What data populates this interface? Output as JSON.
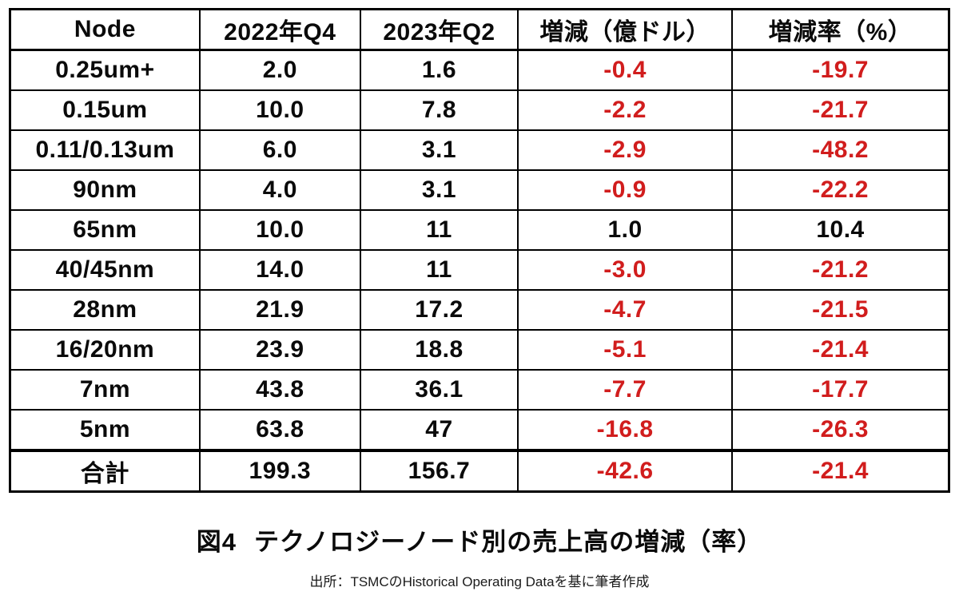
{
  "figure": {
    "caption_label": "図4",
    "caption_text": "テクノロジーノード別の売上高の増減（率）",
    "source": "出所：TSMCのHistorical Operating Dataを基に筆者作成"
  },
  "colors": {
    "negative_value": "#d11d1d",
    "positive_value": "#0a0a0a",
    "border": "#000000",
    "background": "#ffffff"
  },
  "chart_data": {
    "type": "table",
    "title": "図4 テクノロジーノード別の売上高の増減（率）",
    "columns": [
      "Node",
      "2022年Q4",
      "2023年Q2",
      "増減（億ドル）",
      "増減率（%）"
    ],
    "units": {
      "revenue": "億ドル",
      "rate": "%"
    },
    "rows": [
      {
        "cells": [
          "0.25um+",
          "2.0",
          "1.6",
          "-0.4",
          "-19.7"
        ]
      },
      {
        "cells": [
          "0.15um",
          "10.0",
          "7.8",
          "-2.2",
          "-21.7"
        ]
      },
      {
        "cells": [
          "0.11/0.13um",
          "6.0",
          "3.1",
          "-2.9",
          "-48.2"
        ]
      },
      {
        "cells": [
          "90nm",
          "4.0",
          "3.1",
          "-0.9",
          "-22.2"
        ]
      },
      {
        "cells": [
          "65nm",
          "10.0",
          "11",
          "1.0",
          "10.4"
        ]
      },
      {
        "cells": [
          "40/45nm",
          "14.0",
          "11",
          "-3.0",
          "-21.2"
        ]
      },
      {
        "cells": [
          "28nm",
          "21.9",
          "17.2",
          "-4.7",
          "-21.5"
        ]
      },
      {
        "cells": [
          "16/20nm",
          "23.9",
          "18.8",
          "-5.1",
          "-21.4"
        ]
      },
      {
        "cells": [
          "7nm",
          "43.8",
          "36.1",
          "-7.7",
          "-17.7"
        ]
      },
      {
        "cells": [
          "5nm",
          "63.8",
          "47",
          "-16.8",
          "-26.3"
        ]
      },
      {
        "cells": [
          "合計",
          "199.3",
          "156.7",
          "-42.6",
          "-21.4"
        ],
        "is_total": true
      }
    ],
    "source": "出所：TSMCのHistorical Operating Dataを基に筆者作成"
  }
}
